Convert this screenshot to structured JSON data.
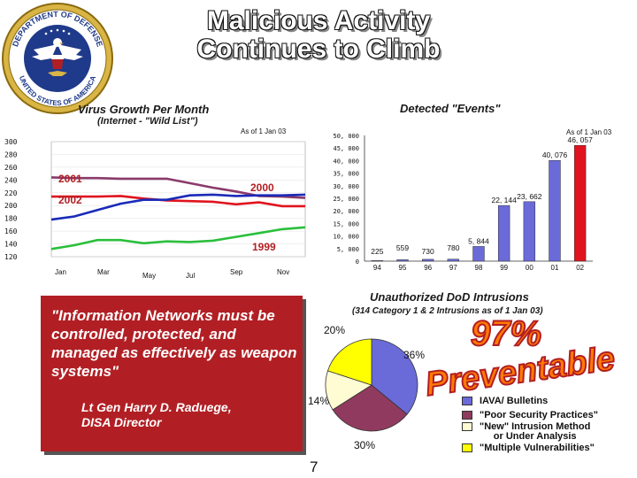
{
  "title": {
    "line1": "Malicious Activity",
    "line2": "Continues to Climb"
  },
  "seal": {
    "top_text": "DEPARTMENT OF DEFENSE",
    "bottom_text": "UNITED STATES OF AMERICA"
  },
  "colors": {
    "accent_red": "#b11f24",
    "bar_blue": "#6a6ad8",
    "bar_red": "#e0141e",
    "pie_purple": "#8f3a5e"
  },
  "chart_data": [
    {
      "type": "line",
      "title": "Virus Growth Per Month",
      "subtitle": "(Internet - \"Wild List\")",
      "note": "As of 1 Jan 03",
      "x_labels": [
        "Jan",
        "Mar",
        "May",
        "Jul",
        "Sep",
        "Nov"
      ],
      "y_ticks": [
        "300",
        "280",
        "260",
        "240",
        "220",
        "200",
        "180",
        "160",
        "140",
        "120"
      ],
      "ylim": [
        120,
        300
      ],
      "series": [
        {
          "name": "2001",
          "color": "#8a3a6a",
          "values": [
            244,
            243,
            243,
            242,
            242,
            242,
            235,
            228,
            222,
            215,
            214,
            212
          ]
        },
        {
          "name": "2002",
          "color": "#e0141e",
          "values": [
            214,
            214,
            214,
            215,
            211,
            208,
            207,
            206,
            202,
            205,
            199,
            199
          ]
        },
        {
          "name": "2000",
          "color": "#1a2ab8",
          "values": [
            178,
            183,
            193,
            203,
            209,
            209,
            216,
            217,
            215,
            216,
            216,
            217
          ]
        },
        {
          "name": "1999",
          "color": "#2bbf3c",
          "values": [
            132,
            138,
            146,
            146,
            141,
            144,
            143,
            145,
            151,
            157,
            163,
            166
          ]
        }
      ]
    },
    {
      "type": "bar",
      "title": "Detected \"Events\"",
      "note": "As of 1 Jan 03",
      "categories": [
        "94",
        "95",
        "96",
        "97",
        "98",
        "99",
        "00",
        "01",
        "02"
      ],
      "values": [
        225,
        559,
        730,
        780,
        5844,
        22144,
        23662,
        40076,
        46057
      ],
      "value_labels": [
        "225",
        "559",
        "730",
        "780",
        "5, 844",
        "22, 144",
        "23, 662",
        "40, 076",
        "46, 057"
      ],
      "y_ticks": [
        "50, 000",
        "45, 000",
        "40, 000",
        "35, 000",
        "30, 000",
        "25, 000",
        "20, 000",
        "15, 000",
        "10, 000",
        "5, 000",
        "0"
      ],
      "ylim": [
        0,
        50000
      ]
    },
    {
      "type": "pie",
      "title": "Unauthorized DoD Intrusions",
      "subtitle": "(314 Category 1 & 2 Intrusions as of 1 Jan 03)",
      "slices": [
        {
          "label": "IAVA/ Bulletins",
          "value": 36,
          "display": "36%",
          "color": "#6a6ad8"
        },
        {
          "label": "\"Poor Security Practices\"",
          "value": 30,
          "display": "30%",
          "color": "#8f3a5e"
        },
        {
          "label": "\"New\" Intrusion Method or Under Analysis",
          "value": 14,
          "display": "14%",
          "color": "#fffbd2"
        },
        {
          "label": "\"Multiple Vulnerabilities\"",
          "value": 20,
          "display": "20%",
          "color": "#ffff00"
        }
      ]
    }
  ],
  "quote": {
    "text": "\"Information Networks must be controlled, protected, and managed as effectively as weapon systems\"",
    "author_line1": "Lt Gen Harry D. Raduege,",
    "author_line2": "DISA Director"
  },
  "callout": {
    "percent": "97%",
    "word": "Preventable"
  },
  "legend_line2": "or Under Analysis",
  "legend_line1": "\"New\" Intrusion Method",
  "page_number": "7"
}
